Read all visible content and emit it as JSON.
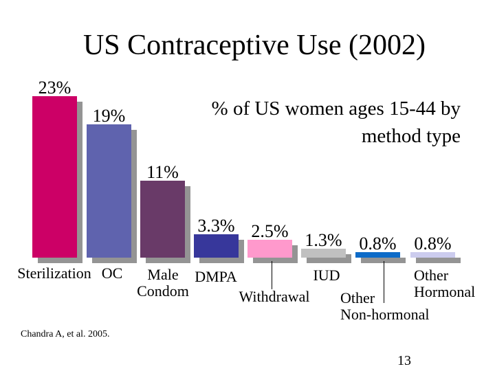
{
  "slide": {
    "title": "US Contraceptive Use (2002)",
    "subtitle_lines": [
      "% of US women ages 15-44 by",
      "method type"
    ],
    "citation": "Chandra A, et al. 2005.",
    "page_number": "13"
  },
  "chart_data": {
    "type": "bar",
    "title": "US Contraceptive Use (2002)",
    "subtitle": "% of US women ages 15-44 by method type",
    "ylabel": "% of US women ages 15-44",
    "ylim": [
      0,
      25
    ],
    "grid": false,
    "legend": "none",
    "categories": [
      "Sterilization",
      "OC",
      "Male Condom",
      "DMPA",
      "Withdrawal",
      "IUD",
      "Other Non-hormonal",
      "Other Hormonal"
    ],
    "category_label_lines": [
      [
        "Sterilization"
      ],
      [
        "OC"
      ],
      [
        "Male",
        "Condom"
      ],
      [
        "DMPA"
      ],
      [
        "Withdrawal"
      ],
      [
        "IUD"
      ],
      [
        "Other",
        "Non-hormonal"
      ],
      [
        "Other",
        "Hormonal"
      ]
    ],
    "values": [
      23,
      19,
      11,
      3.3,
      2.5,
      1.3,
      0.8,
      0.8
    ],
    "value_labels": [
      "23%",
      "19%",
      "11%",
      "3.3%",
      "2.5%",
      "1.3%",
      "0.8%",
      "0.8%"
    ],
    "bar_colors": [
      "#CC0066",
      "#5F63AE",
      "#693A68",
      "#37379B",
      "#FF99CC",
      "#C0C0C0",
      "#0D6BC8",
      "#CCCCEE"
    ],
    "shadow_color": "#949494",
    "text_color": "#000000",
    "background_color": "#FFFFFF"
  }
}
